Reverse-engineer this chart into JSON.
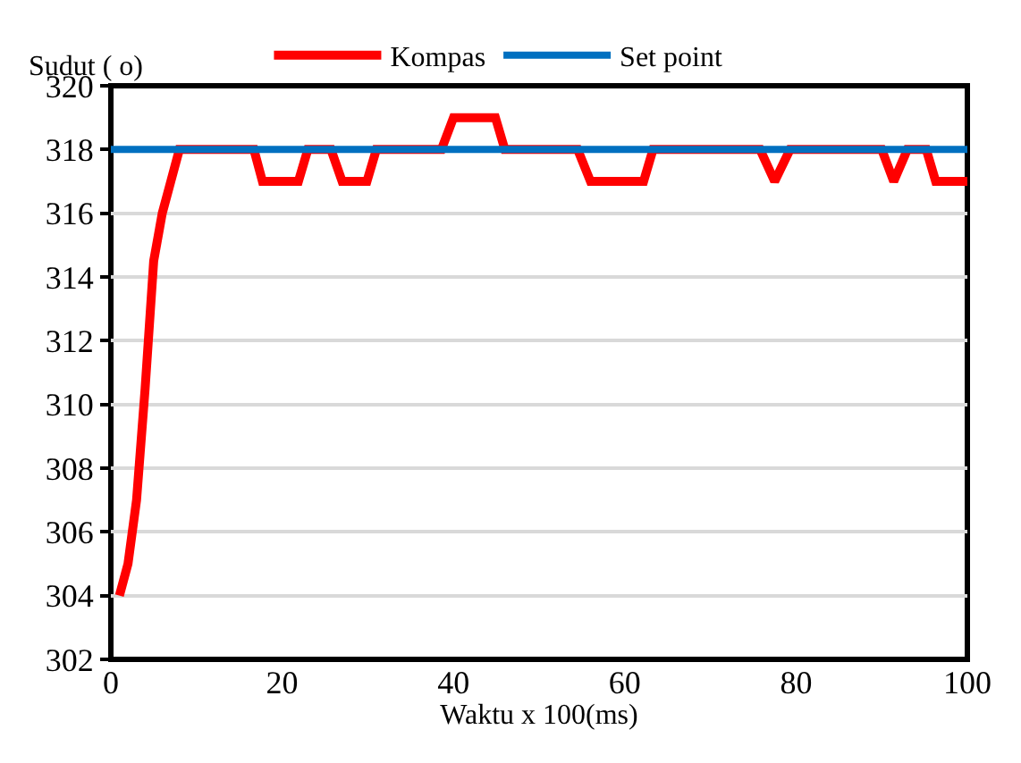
{
  "chart_data": {
    "type": "line",
    "xlabel": "Waktu x 100(ms)",
    "ylabel": "Sudut ( o)",
    "series": [
      {
        "name": "Kompas",
        "color": "#ff0000",
        "x": [
          1,
          2,
          3,
          4,
          5,
          6,
          7,
          8,
          16.7,
          17.7,
          21.9,
          23,
          25.7,
          27,
          29.9,
          31,
          38.6,
          40,
          44.9,
          46,
          54.5,
          56,
          62.2,
          63.3,
          75.8,
          77.5,
          79.3,
          90,
          91.4,
          93,
          95.2,
          96.3,
          100
        ],
        "values": [
          304,
          305,
          307,
          310.5,
          314.5,
          316,
          317,
          318,
          318,
          317,
          317,
          318,
          318,
          317,
          317,
          318,
          318,
          319,
          319,
          318,
          318,
          317,
          317,
          318,
          318,
          317,
          318,
          318,
          317,
          318,
          318,
          317,
          317
        ]
      },
      {
        "name": "Set point",
        "color": "#0070c0",
        "x": [
          0,
          100
        ],
        "values": [
          318,
          318
        ]
      }
    ],
    "xlim": [
      0,
      100
    ],
    "xticks": [
      0,
      20,
      40,
      60,
      80,
      100
    ],
    "ylim": [
      302,
      320
    ],
    "yticks": [
      302,
      304,
      306,
      308,
      310,
      312,
      314,
      316,
      318,
      320
    ],
    "grid": "y",
    "legend": "top",
    "marker": "none",
    "line_style": "solid"
  }
}
